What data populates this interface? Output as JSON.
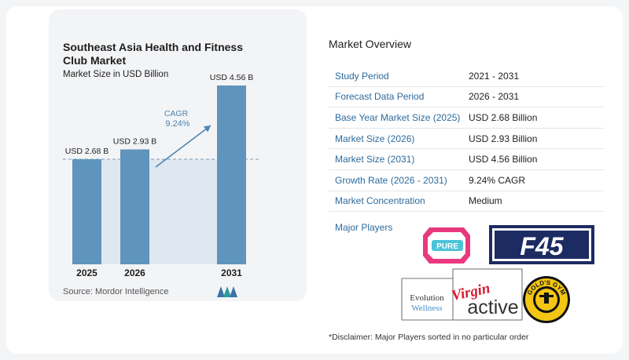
{
  "chart_data": {
    "type": "bar",
    "title": "Southeast Asia Health and Fitness Club Market",
    "subtitle": "Market Size in USD Billion",
    "categories": [
      "2025",
      "2026",
      "2031"
    ],
    "values": [
      2.68,
      2.93,
      4.56
    ],
    "data_labels": [
      "USD 2.68 B",
      "USD 2.93 B",
      "USD 4.56 B"
    ],
    "cagr_label": "CAGR",
    "cagr_value": "9.24%",
    "ylim": [
      0,
      5
    ],
    "grid": false,
    "colors": {
      "bar": "#5f95bd",
      "shade": "#dfe7f0",
      "arrow": "#4a86b4"
    }
  },
  "source": "Source:  Mordor Intelligence",
  "overview": {
    "title": "Market Overview",
    "rows": [
      {
        "key": "Study Period",
        "value": "2021 - 2031"
      },
      {
        "key": "Forecast Data Period",
        "value": "2026 - 2031"
      },
      {
        "key": "Base Year Market Size (2025)",
        "value": "USD 2.68 Billion"
      },
      {
        "key": "Market Size (2026)",
        "value": "USD 2.93 Billion"
      },
      {
        "key": "Market Size (2031)",
        "value": "USD 4.56 Billion"
      },
      {
        "key": "Growth Rate (2026 - 2031)",
        "value": "9.24% CAGR"
      },
      {
        "key": "Market Concentration",
        "value": "Medium"
      }
    ],
    "players_label": "Major Players",
    "players": {
      "pure": "PURE",
      "f45": "F45",
      "evolution_1": "Evolution",
      "evolution_2": "Wellness",
      "virgin": "Virgin",
      "active": "active",
      "golds": "GOLD'S GYM"
    }
  },
  "disclaimer": "*Disclaimer: Major Players sorted in no particular order"
}
